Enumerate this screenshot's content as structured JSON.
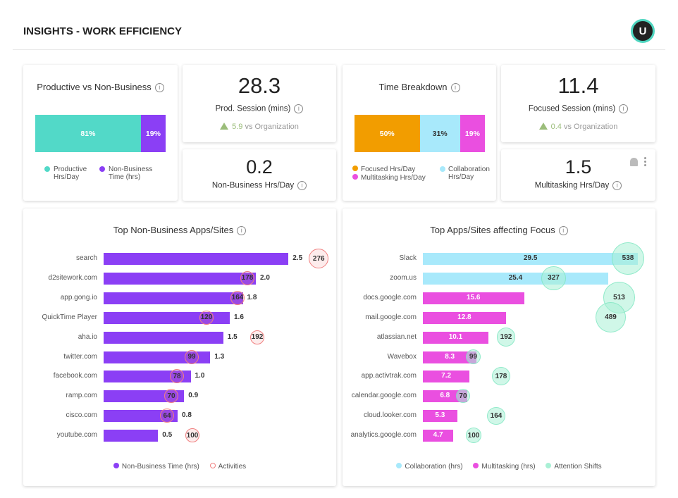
{
  "header": {
    "title": "INSIGHTS - WORK EFFICIENCY",
    "avatar": "U"
  },
  "colors": {
    "productive": "#52d9c8",
    "nonbusiness": "#8b3ff5",
    "focused": "#f29d00",
    "collaboration": "#a8e9fb",
    "multitasking": "#ea4fe0",
    "activities": "#f08080",
    "attention": "#a9f0d5"
  },
  "productive_card": {
    "title": "Productive vs Non-Business",
    "segments": [
      {
        "label": "81%",
        "value": 81
      },
      {
        "label": "19%",
        "value": 19
      }
    ],
    "legend": [
      "Productive Hrs/Day",
      "Non-Business Time (hrs)"
    ]
  },
  "prod_session": {
    "value": "28.3",
    "label": "Prod. Session (mins)",
    "delta": "5.9",
    "delta_text": "vs Organization"
  },
  "nonbiz": {
    "value": "0.2",
    "label": "Non-Business Hrs/Day"
  },
  "time_breakdown": {
    "title": "Time Breakdown",
    "segments": [
      {
        "label": "50%",
        "value": 50
      },
      {
        "label": "31%",
        "value": 31
      },
      {
        "label": "19%",
        "value": 19
      }
    ],
    "legend": [
      "Focused Hrs/Day",
      "Multitasking Hrs/Day",
      "Collaboration Hrs/Day"
    ]
  },
  "focused_session": {
    "value": "11.4",
    "label": "Focused Session (mins)",
    "delta": "0.4",
    "delta_text": "vs Organization"
  },
  "multitasking": {
    "value": "1.5",
    "label": "Multitasking Hrs/Day",
    "icons": [
      "bell-plus-icon",
      "more-vert-icon"
    ]
  },
  "chart_data": [
    {
      "type": "bar",
      "title": "Top Non-Business Apps/Sites",
      "categories": [
        "search",
        "d2sitework.com",
        "app.gong.io",
        "QuickTime Player",
        "aha.io",
        "twitter.com",
        "facebook.com",
        "ramp.com",
        "cisco.com",
        "youtube.com"
      ],
      "series": [
        {
          "name": "Non-Business Time (hrs)",
          "values": [
            2.5,
            2.0,
            1.8,
            1.6,
            1.5,
            1.3,
            1.0,
            0.9,
            0.8,
            0.5
          ]
        },
        {
          "name": "Activities",
          "values": [
            276,
            178,
            164,
            120,
            192,
            99,
            78,
            70,
            64,
            100
          ]
        }
      ],
      "legend": "bottom"
    },
    {
      "type": "bar",
      "title": "Top Apps/Sites affecting Focus",
      "categories": [
        "Slack",
        "zoom.us",
        "docs.google.com",
        "mail.google.com",
        "atlassian.net",
        "Wavebox",
        "app.activtrak.com",
        "calendar.google.com",
        "cloud.looker.com",
        "analytics.google.com"
      ],
      "bar_series": [
        "collab",
        "collab",
        "multi",
        "multi",
        "multi",
        "multi",
        "multi",
        "multi",
        "multi",
        "multi"
      ],
      "values": [
        29.5,
        25.4,
        15.6,
        12.8,
        10.1,
        8.3,
        7.2,
        6.8,
        5.3,
        4.7
      ],
      "attention_shifts": [
        538,
        327,
        513,
        489,
        192,
        99,
        178,
        70,
        164,
        100
      ],
      "legend_names": [
        "Collaboration (hrs)",
        "Multitasking (hrs)",
        "Attention Shifts"
      ],
      "legend": "bottom"
    }
  ]
}
